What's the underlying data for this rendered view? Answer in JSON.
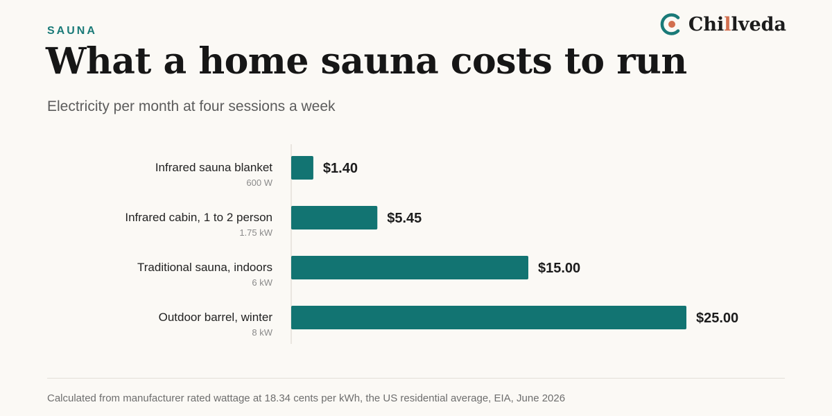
{
  "header": {
    "eyebrow": "SAUNA",
    "title": "What a home sauna costs to run",
    "subtitle": "Electricity per month at four sessions a week"
  },
  "brand": {
    "name_prefix": "Chi",
    "name_accent": "l",
    "name_suffix": "lveda",
    "logo_icon": "chillveda-logo-icon"
  },
  "colors": {
    "bar": "#127472",
    "accent": "#d26f4f",
    "eyebrow": "#1a7a78"
  },
  "chart_data": {
    "type": "bar",
    "orientation": "horizontal",
    "categories": [
      "Infrared sauna blanket",
      "Infrared cabin, 1 to 2 person",
      "Traditional sauna, indoors",
      "Outdoor barrel, winter"
    ],
    "sublabels": [
      "600 W",
      "1.75 kW",
      "6 kW",
      "8 kW"
    ],
    "values": [
      1.4,
      5.45,
      15.0,
      25.0
    ],
    "value_labels": [
      "$1.40",
      "$5.45",
      "$15.00",
      "$25.00"
    ],
    "xlim": [
      0,
      25
    ],
    "grid": false,
    "legend": "none"
  },
  "footer": {
    "note": "Calculated from manufacturer rated wattage at 18.34 cents per kWh, the US residential average, EIA, June 2026"
  }
}
